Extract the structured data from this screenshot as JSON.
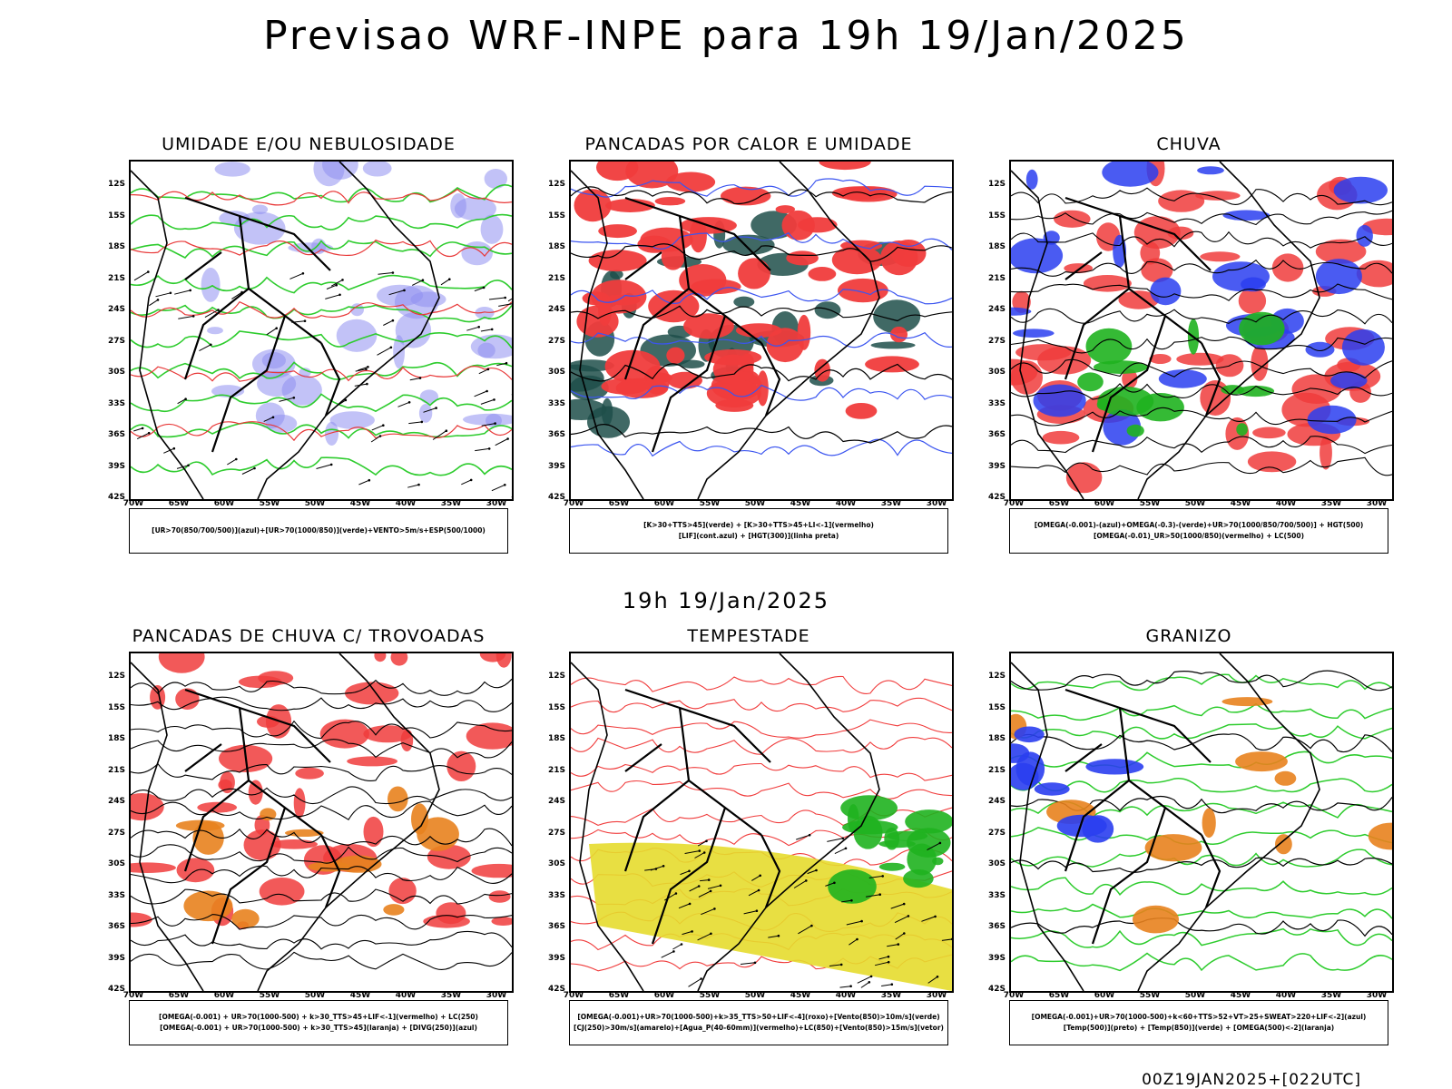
{
  "header": {
    "title": "Previsao WRF-INPE  para 19h 19/Jan/2025",
    "mid_time": "19h 19/Jan/2025",
    "footer": "00Z19JAN2025+[022UTC]"
  },
  "axes": {
    "lat_labels": [
      "12S",
      "15S",
      "18S",
      "21S",
      "24S",
      "27S",
      "30S",
      "33S",
      "36S",
      "39S",
      "42S"
    ],
    "lon_labels": [
      "70W",
      "65W",
      "60W",
      "55W",
      "50W",
      "45W",
      "40W",
      "35W",
      "30W"
    ]
  },
  "panels": [
    {
      "id": "umidade",
      "title": "UMIDADE E/OU NEBULOSIDADE",
      "legend": [
        "[UR>70(850/700/500)](azul)+[UR>70(1000/850)](verde)+VENTO>5m/s+ESP(500/1000)"
      ],
      "colors": {
        "primary": "#8f8ff0",
        "secondary": "#2ecc2e",
        "accent": "#e83838"
      }
    },
    {
      "id": "pancadas-calor",
      "title": "PANCADAS POR CALOR E UMIDADE",
      "legend": [
        "[K>30+TTS>45](verde) + [K>30+TTS>45+LI<-1](vermelho)",
        "[LIF](cont.azul) + [HGT(300)](linha preta)"
      ],
      "colors": {
        "primary": "#f03c3c",
        "secondary": "#1f4f4a",
        "accent": "#3b55f0"
      }
    },
    {
      "id": "chuva",
      "title": "CHUVA",
      "legend": [
        "[OMEGA(-0.001)-(azul)+OMEGA(-0.3)-(verde)+UR>70(1000/850/700/500)] + HGT(500)",
        "[OMEGA(-0.01)_UR>50(1000/850)(vermelho) + LC(500)"
      ],
      "colors": {
        "primary": "#f03c3c",
        "secondary": "#2a3ef0",
        "accent": "#1fb31f"
      }
    },
    {
      "id": "pancadas-trovoadas",
      "title": "PANCADAS DE CHUVA C/ TROVOADAS",
      "legend": [
        "[OMEGA(-0.001) + UR>70(1000-500) + k>30_TTS>45+LIF<-1](vermelho) + LC(250)",
        "[OMEGA(-0.001) + UR>70(1000-500) + k>30_TTS>45](laranja) + [DIVG(250)](azul)"
      ],
      "colors": {
        "primary": "#f03c3c",
        "secondary": "#e8821e",
        "accent": "#2a3ef0"
      }
    },
    {
      "id": "tempestade",
      "title": "TEMPESTADE",
      "legend": [
        "[OMEGA(-0.001)+UR>70(1000-500)+k>35_TTS>50+LIF<-4](roxo)+[Vento(850)>10m/s](verde)",
        "[CJ(250)>30m/s](amarelo)+[Agua_P(40-60mm)](vermelho)+LC(850)+[Vento(850)>15m/s](vetor)"
      ],
      "colors": {
        "primary": "#e6dc2e",
        "secondary": "#f03c3c",
        "accent": "#1fb31f"
      }
    },
    {
      "id": "granizo",
      "title": "GRANIZO",
      "legend": [
        "[OMEGA(-0.001)+UR>70(1000-500)+k<60+TTS>52+VT>25+SWEAT>220+LIF<-2](azul)",
        "[Temp(500)](preto) + [Temp(850)](verde) + [OMEGA(500)<-2](laranja)"
      ],
      "colors": {
        "primary": "#2ecc2e",
        "secondary": "#e8821e",
        "accent": "#2a3ef0"
      }
    }
  ]
}
